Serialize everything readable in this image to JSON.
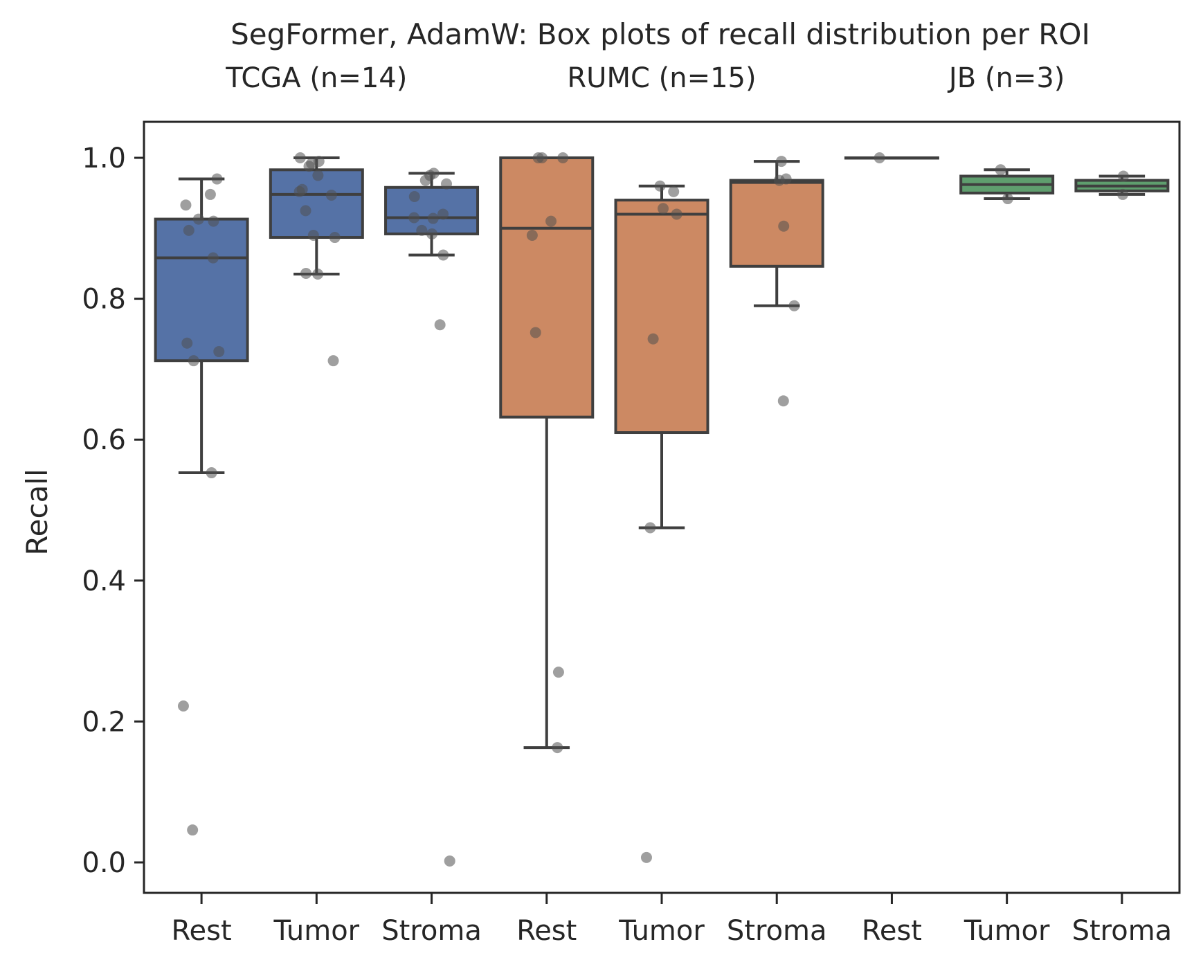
{
  "chart_data": {
    "type": "box",
    "title": "SegFormer, AdamW: Box plots of recall distribution per ROI",
    "ylabel": "Recall",
    "xlabel": "",
    "ylim": [
      -0.05,
      1.05
    ],
    "yticks": [
      0.0,
      0.2,
      0.4,
      0.6,
      0.8,
      1.0
    ],
    "ytick_labels": [
      "0.0",
      "0.2",
      "0.4",
      "0.6",
      "0.8",
      "1.0"
    ],
    "grid": false,
    "groups": [
      {
        "label": "TCGA (n=14)",
        "color": "#5572a6",
        "boxes": [
          {
            "category": "Rest",
            "q1": 0.712,
            "median": 0.858,
            "q3": 0.913,
            "whisker_low": 0.553,
            "whisker_high": 0.97,
            "points": [
              0.97,
              0.948,
              0.933,
              0.913,
              0.91,
              0.897,
              0.858,
              0.737,
              0.725,
              0.712,
              0.553,
              0.222,
              0.046
            ]
          },
          {
            "category": "Tumor",
            "q1": 0.887,
            "median": 0.948,
            "q3": 0.983,
            "whisker_low": 0.835,
            "whisker_high": 1.0,
            "points": [
              1.0,
              0.995,
              0.992,
              0.988,
              0.975,
              0.955,
              0.952,
              0.947,
              0.925,
              0.89,
              0.887,
              0.836,
              0.835,
              0.712
            ]
          },
          {
            "category": "Stroma",
            "q1": 0.892,
            "median": 0.915,
            "q3": 0.958,
            "whisker_low": 0.862,
            "whisker_high": 0.978,
            "points": [
              0.978,
              0.975,
              0.968,
              0.963,
              0.945,
              0.92,
              0.915,
              0.914,
              0.897,
              0.892,
              0.862,
              0.763,
              0.002
            ]
          }
        ]
      },
      {
        "label": "RUMC (n=15)",
        "color": "#cc8963",
        "boxes": [
          {
            "category": "Rest",
            "q1": 0.632,
            "median": 0.9,
            "q3": 1.0,
            "whisker_low": 0.163,
            "whisker_high": 1.0,
            "points": [
              1.0,
              1.0,
              1.0,
              0.91,
              0.89,
              0.752,
              0.27,
              0.163
            ]
          },
          {
            "category": "Tumor",
            "q1": 0.61,
            "median": 0.92,
            "q3": 0.94,
            "whisker_low": 0.475,
            "whisker_high": 0.96,
            "points": [
              0.96,
              0.952,
              0.928,
              0.92,
              0.743,
              0.475,
              0.007
            ]
          },
          {
            "category": "Stroma",
            "q1": 0.846,
            "median": 0.965,
            "q3": 0.968,
            "whisker_low": 0.79,
            "whisker_high": 0.995,
            "points": [
              0.995,
              0.97,
              0.968,
              0.903,
              0.79,
              0.655
            ]
          }
        ]
      },
      {
        "label": "JB (n=3)",
        "color": "#5f9e6e",
        "boxes": [
          {
            "category": "Rest",
            "q1": 1.0,
            "median": 1.0,
            "q3": 1.0,
            "whisker_low": 1.0,
            "whisker_high": 1.0,
            "points": [
              1.0
            ]
          },
          {
            "category": "Tumor",
            "q1": 0.95,
            "median": 0.962,
            "q3": 0.974,
            "whisker_low": 0.942,
            "whisker_high": 0.983,
            "points": [
              0.983,
              0.942
            ]
          },
          {
            "category": "Stroma",
            "q1": 0.953,
            "median": 0.96,
            "q3": 0.968,
            "whisker_low": 0.948,
            "whisker_high": 0.974,
            "points": [
              0.974,
              0.948
            ]
          }
        ]
      }
    ]
  }
}
